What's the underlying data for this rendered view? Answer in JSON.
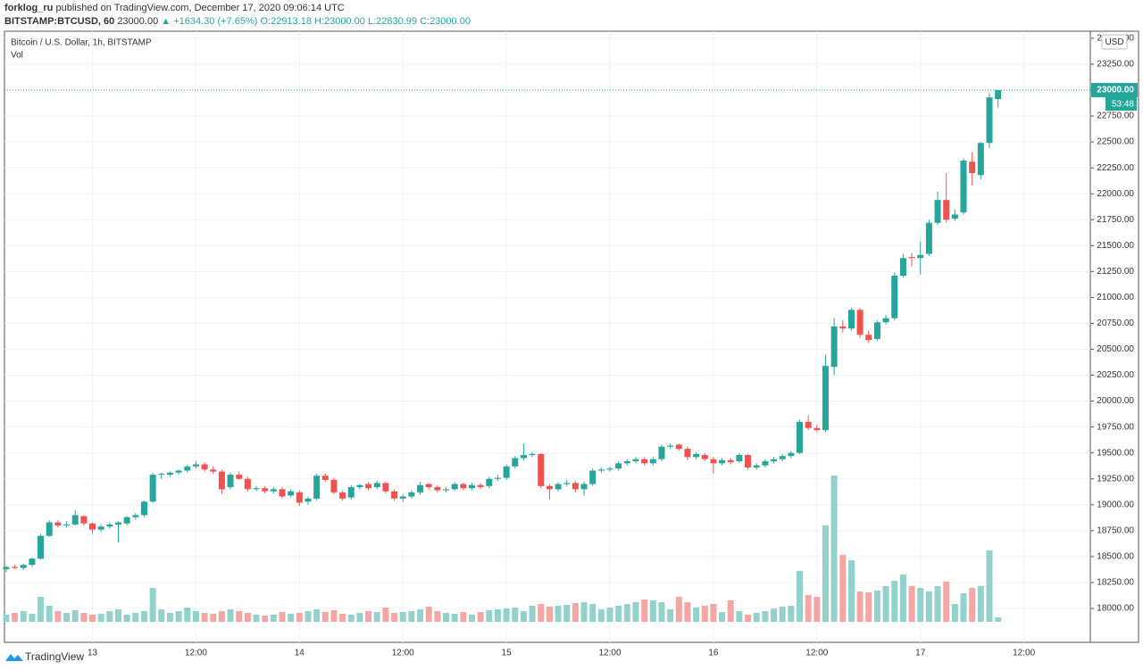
{
  "header": {
    "author": "forklog_ru",
    "published": "published on TradingView.com, December 17, 2020 09:06:14 UTC",
    "symbol": "BITSTAMP:BTCUSD, 60",
    "price": "23000.00",
    "change": "▲ +1634.30 (+7.65%)",
    "ohlc": "O:22913.18 H:23000.00 L:22830.99 C:23000.00"
  },
  "footer": "TradingView",
  "chart_data": {
    "type": "candlestick",
    "legend": "Bitcoin / U.S. Dollar, 1h, BITSTAMP",
    "volume_label": "Vol",
    "currency": "USD",
    "countdown": "53:48",
    "last_price_label": "23000.00",
    "up_color": "#26a69a",
    "down_color": "#ef5350",
    "volume_up_color": "#93d2cc",
    "volume_down_color": "#f5a6a3",
    "xlim": [
      -0.2,
      125.7
    ],
    "xticks": [
      {
        "value": 10,
        "label": "13"
      },
      {
        "value": 22,
        "label": "12:00"
      },
      {
        "value": 34,
        "label": "14"
      },
      {
        "value": 46,
        "label": "12:00"
      },
      {
        "value": 58,
        "label": "15"
      },
      {
        "value": 70,
        "label": "12:00"
      },
      {
        "value": 82,
        "label": "16"
      },
      {
        "value": 94,
        "label": "12:00"
      },
      {
        "value": 106,
        "label": "17"
      },
      {
        "value": 118,
        "label": "12:00"
      }
    ],
    "ylim": [
      17673,
      23568
    ],
    "yticks": [
      {
        "value": 18000,
        "label": "18000.00"
      },
      {
        "value": 18250,
        "label": "18250.00"
      },
      {
        "value": 18500,
        "label": "18500.00"
      },
      {
        "value": 18750,
        "label": "18750.00"
      },
      {
        "value": 19000,
        "label": "19000.00"
      },
      {
        "value": 19250,
        "label": "19250.00"
      },
      {
        "value": 19500,
        "label": "19500.00"
      },
      {
        "value": 19750,
        "label": "19750.00"
      },
      {
        "value": 20000,
        "label": "20000.00"
      },
      {
        "value": 20250,
        "label": "20250.00"
      },
      {
        "value": 20500,
        "label": "20500.00"
      },
      {
        "value": 20750,
        "label": "20750.00"
      },
      {
        "value": 21000,
        "label": "21000.00"
      },
      {
        "value": 21250,
        "label": "21250.00"
      },
      {
        "value": 21500,
        "label": "21500.00"
      },
      {
        "value": 21750,
        "label": "21750.00"
      },
      {
        "value": 22000,
        "label": "22000.00"
      },
      {
        "value": 22250,
        "label": "22250.00"
      },
      {
        "value": 22500,
        "label": "22500.00"
      },
      {
        "value": 22750,
        "label": "22750.00"
      },
      {
        "value": 23000,
        "label": "23000.00"
      },
      {
        "value": 23250,
        "label": "23250.00"
      },
      {
        "value": 23500,
        "label": "23500.00"
      }
    ],
    "grid": true,
    "volume_range": [
      0,
      180
    ],
    "ohlc": [
      [
        18380,
        18410,
        18350,
        18400
      ],
      [
        18400,
        18420,
        18380,
        18390
      ],
      [
        18390,
        18430,
        18370,
        18420
      ],
      [
        18420,
        18490,
        18400,
        18480
      ],
      [
        18480,
        18720,
        18470,
        18700
      ],
      [
        18700,
        18850,
        18690,
        18830
      ],
      [
        18830,
        18850,
        18780,
        18800
      ],
      [
        18800,
        18840,
        18780,
        18810
      ],
      [
        18810,
        18950,
        18800,
        18900
      ],
      [
        18890,
        18900,
        18800,
        18820
      ],
      [
        18820,
        18830,
        18720,
        18760
      ],
      [
        18760,
        18810,
        18740,
        18790
      ],
      [
        18790,
        18830,
        18770,
        18810
      ],
      [
        18810,
        18840,
        18640,
        18830
      ],
      [
        18820,
        18890,
        18800,
        18880
      ],
      [
        18880,
        18920,
        18860,
        18900
      ],
      [
        18900,
        19040,
        18880,
        19030
      ],
      [
        19030,
        19310,
        19020,
        19290
      ],
      [
        19290,
        19310,
        19250,
        19300
      ],
      [
        19290,
        19320,
        19270,
        19310
      ],
      [
        19310,
        19340,
        19290,
        19330
      ],
      [
        19330,
        19390,
        19310,
        19370
      ],
      [
        19370,
        19420,
        19350,
        19390
      ],
      [
        19390,
        19410,
        19320,
        19340
      ],
      [
        19340,
        19370,
        19300,
        19320
      ],
      [
        19320,
        19340,
        19100,
        19150
      ],
      [
        19170,
        19310,
        19150,
        19290
      ],
      [
        19290,
        19320,
        19240,
        19250
      ],
      [
        19250,
        19270,
        19130,
        19150
      ],
      [
        19150,
        19180,
        19130,
        19160
      ],
      [
        19160,
        19180,
        19110,
        19130
      ],
      [
        19130,
        19170,
        19110,
        19150
      ],
      [
        19150,
        19170,
        19060,
        19080
      ],
      [
        19090,
        19150,
        19070,
        19130
      ],
      [
        19120,
        19140,
        18990,
        19020
      ],
      [
        19030,
        19080,
        19000,
        19060
      ],
      [
        19060,
        19300,
        19040,
        19280
      ],
      [
        19280,
        19300,
        19220,
        19240
      ],
      [
        19240,
        19260,
        19100,
        19120
      ],
      [
        19120,
        19140,
        19040,
        19060
      ],
      [
        19070,
        19190,
        19050,
        19170
      ],
      [
        19170,
        19200,
        19150,
        19190
      ],
      [
        19200,
        19220,
        19140,
        19160
      ],
      [
        19170,
        19230,
        19150,
        19210
      ],
      [
        19210,
        19220,
        19110,
        19130
      ],
      [
        19130,
        19150,
        19040,
        19060
      ],
      [
        19060,
        19100,
        19030,
        19080
      ],
      [
        19080,
        19140,
        19060,
        19120
      ],
      [
        19120,
        19220,
        19100,
        19190
      ],
      [
        19200,
        19210,
        19150,
        19170
      ],
      [
        19170,
        19190,
        19120,
        19140
      ],
      [
        19140,
        19170,
        19120,
        19150
      ],
      [
        19150,
        19220,
        19130,
        19200
      ],
      [
        19200,
        19210,
        19140,
        19160
      ],
      [
        19160,
        19210,
        19140,
        19190
      ],
      [
        19190,
        19210,
        19150,
        19170
      ],
      [
        19180,
        19270,
        19160,
        19250
      ],
      [
        19250,
        19290,
        19230,
        19260
      ],
      [
        19260,
        19390,
        19240,
        19370
      ],
      [
        19370,
        19470,
        19350,
        19450
      ],
      [
        19450,
        19590,
        19430,
        19480
      ],
      [
        19480,
        19510,
        19460,
        19490
      ],
      [
        19490,
        19500,
        19160,
        19180
      ],
      [
        19180,
        19200,
        19050,
        19150
      ],
      [
        19150,
        19220,
        19130,
        19200
      ],
      [
        19200,
        19240,
        19180,
        19210
      ],
      [
        19210,
        19230,
        19120,
        19150
      ],
      [
        19150,
        19220,
        19090,
        19200
      ],
      [
        19200,
        19350,
        19180,
        19330
      ],
      [
        19330,
        19360,
        19310,
        19340
      ],
      [
        19340,
        19370,
        19320,
        19350
      ],
      [
        19350,
        19420,
        19330,
        19400
      ],
      [
        19400,
        19440,
        19380,
        19420
      ],
      [
        19420,
        19460,
        19400,
        19440
      ],
      [
        19440,
        19460,
        19380,
        19400
      ],
      [
        19400,
        19460,
        19380,
        19440
      ],
      [
        19440,
        19580,
        19420,
        19560
      ],
      [
        19560,
        19590,
        19540,
        19570
      ],
      [
        19580,
        19590,
        19520,
        19540
      ],
      [
        19540,
        19560,
        19430,
        19460
      ],
      [
        19460,
        19510,
        19440,
        19490
      ],
      [
        19480,
        19500,
        19420,
        19440
      ],
      [
        19440,
        19460,
        19300,
        19400
      ],
      [
        19400,
        19450,
        19380,
        19430
      ],
      [
        19430,
        19450,
        19390,
        19410
      ],
      [
        19420,
        19500,
        19400,
        19480
      ],
      [
        19480,
        19490,
        19340,
        19360
      ],
      [
        19360,
        19400,
        19340,
        19380
      ],
      [
        19380,
        19440,
        19360,
        19420
      ],
      [
        19420,
        19460,
        19400,
        19440
      ],
      [
        19440,
        19490,
        19420,
        19470
      ],
      [
        19470,
        19520,
        19450,
        19500
      ],
      [
        19500,
        19820,
        19490,
        19800
      ],
      [
        19800,
        19860,
        19720,
        19740
      ],
      [
        19740,
        19770,
        19700,
        19720
      ],
      [
        19720,
        20450,
        19700,
        20340
      ],
      [
        20330,
        20800,
        20250,
        20720
      ],
      [
        20720,
        20780,
        20660,
        20700
      ],
      [
        20700,
        20900,
        20680,
        20880
      ],
      [
        20880,
        20900,
        20610,
        20640
      ],
      [
        20640,
        20680,
        20560,
        20590
      ],
      [
        20600,
        20780,
        20580,
        20760
      ],
      [
        20760,
        20830,
        20740,
        20800
      ],
      [
        20800,
        21240,
        20780,
        21210
      ],
      [
        21210,
        21420,
        21190,
        21380
      ],
      [
        21390,
        21430,
        21300,
        21380
      ],
      [
        21380,
        21540,
        21220,
        21410
      ],
      [
        21420,
        21750,
        21400,
        21720
      ],
      [
        21720,
        22020,
        21700,
        21940
      ],
      [
        21940,
        22200,
        21720,
        21750
      ],
      [
        21760,
        21850,
        21740,
        21800
      ],
      [
        21820,
        22340,
        21800,
        22320
      ],
      [
        22310,
        22400,
        22080,
        22200
      ],
      [
        22180,
        22500,
        22140,
        22490
      ],
      [
        22490,
        22970,
        22440,
        22930
      ],
      [
        22913.18,
        23000,
        22830.99,
        23000
      ]
    ],
    "volume": [
      8,
      10,
      12,
      9,
      28,
      18,
      12,
      10,
      13,
      10,
      8,
      9,
      12,
      14,
      8,
      10,
      12,
      38,
      14,
      10,
      12,
      16,
      12,
      10,
      9,
      12,
      14,
      12,
      10,
      8,
      7,
      8,
      11,
      9,
      10,
      12,
      14,
      11,
      13,
      9,
      8,
      10,
      12,
      11,
      16,
      10,
      11,
      12,
      14,
      17,
      12,
      10,
      9,
      11,
      8,
      11,
      13,
      14,
      15,
      16,
      12,
      18,
      20,
      17,
      18,
      19,
      21,
      22,
      20,
      14,
      16,
      18,
      20,
      22,
      25,
      24,
      22,
      14,
      28,
      22,
      16,
      18,
      20,
      11,
      24,
      12,
      8,
      10,
      12,
      15,
      17,
      18,
      57,
      30,
      28,
      108,
      164,
      75,
      69,
      34,
      33,
      35,
      40,
      46,
      53,
      40,
      38,
      34,
      40,
      45,
      20,
      32,
      38,
      40,
      80,
      5
    ]
  }
}
